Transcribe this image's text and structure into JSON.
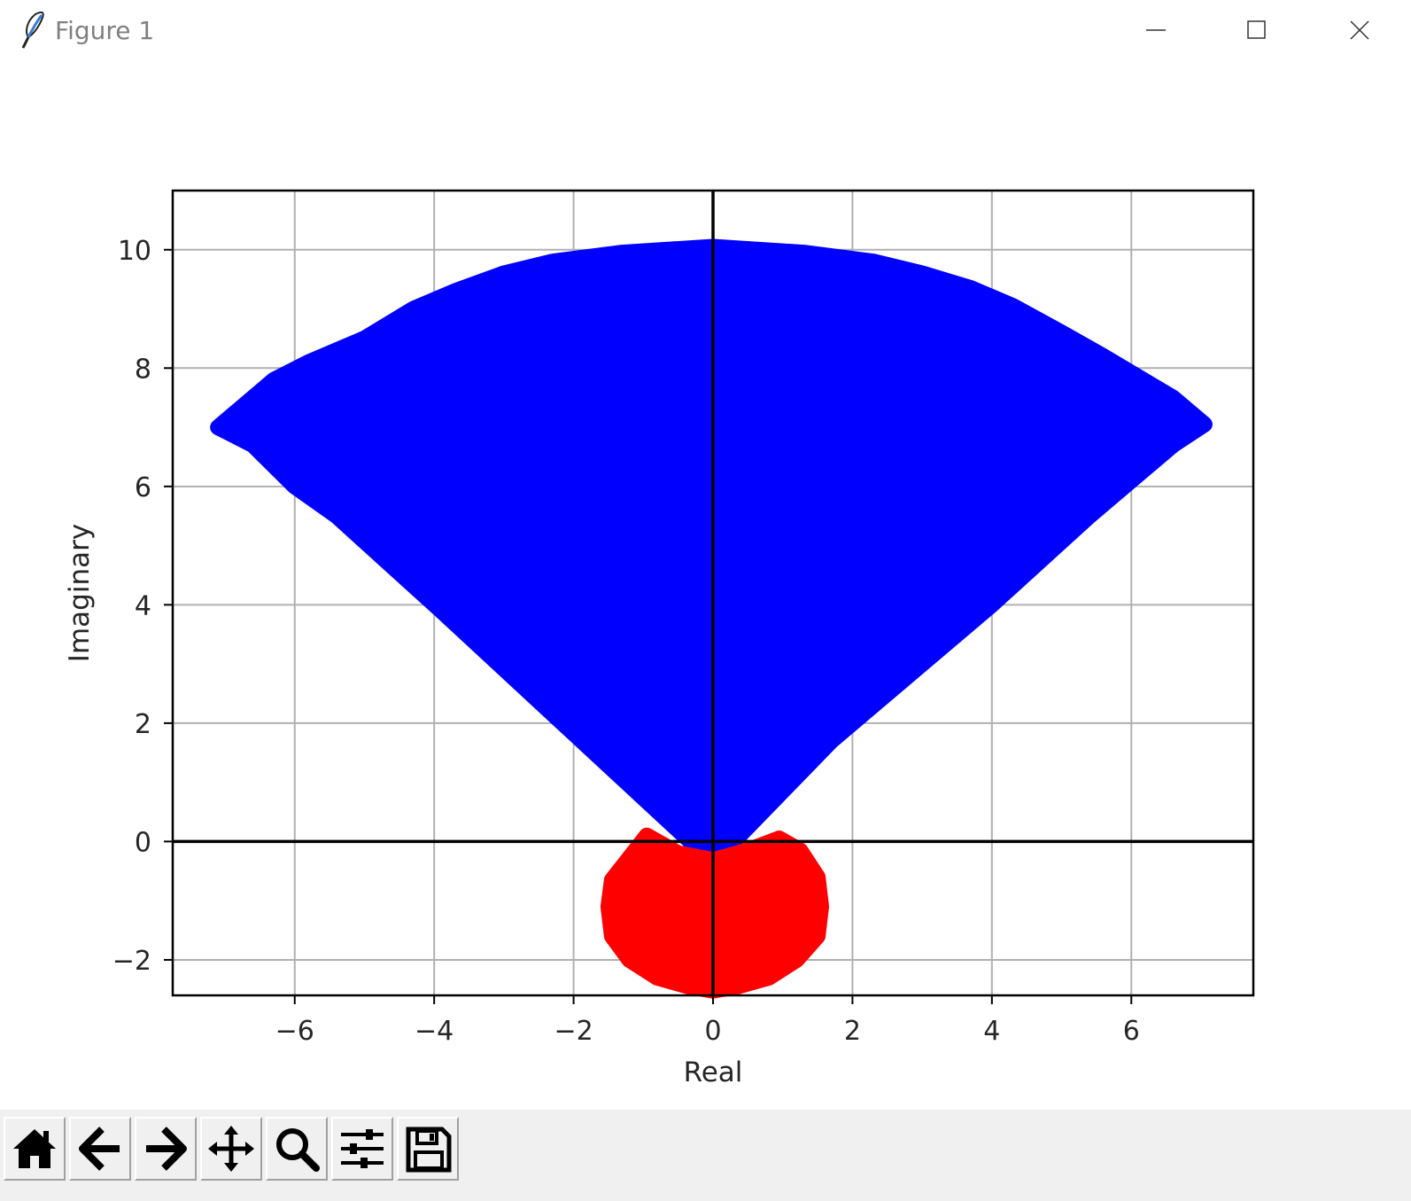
{
  "window": {
    "title": "Figure 1",
    "app_icon": "feather-icon",
    "controls": {
      "minimize": "minimize-icon",
      "maximize": "maximize-icon",
      "close": "close-icon"
    }
  },
  "toolbar": {
    "buttons": [
      {
        "icon": "home-icon"
      },
      {
        "icon": "back-arrow-icon"
      },
      {
        "icon": "forward-arrow-icon"
      },
      {
        "icon": "pan-move-icon"
      },
      {
        "icon": "zoom-magnifier-icon"
      },
      {
        "icon": "configure-subplots-icon"
      },
      {
        "icon": "save-floppy-icon"
      }
    ]
  },
  "chart_data": {
    "type": "scatter",
    "title": "",
    "xlabel": "Real",
    "ylabel": "Imaginary",
    "xlim": [
      -7.75,
      7.75
    ],
    "ylim": [
      -2.6,
      11.0
    ],
    "xticks": [
      -6,
      -4,
      -2,
      0,
      2,
      4,
      6
    ],
    "xtick_labels": [
      "−6",
      "−4",
      "−2",
      "0",
      "2",
      "4",
      "6"
    ],
    "yticks": [
      -2,
      0,
      2,
      4,
      6,
      8,
      10
    ],
    "ytick_labels": [
      "−2",
      "0",
      "2",
      "4",
      "6",
      "8",
      "10"
    ],
    "grid": true,
    "reference_lines": {
      "x": 0,
      "y": 0,
      "color": "#000000"
    },
    "series": [
      {
        "color": "#0000ff",
        "marker": "circle",
        "outline": [
          [
            -0.05,
            -0.3
          ],
          [
            -1.7,
            1.5
          ],
          [
            -3.9,
            3.9
          ],
          [
            -5.4,
            5.5
          ],
          [
            -6.0,
            6.0
          ],
          [
            -6.6,
            6.7
          ],
          [
            -7.1,
            7.0
          ],
          [
            -6.6,
            7.5
          ],
          [
            -6.3,
            7.8
          ],
          [
            -5.8,
            8.1
          ],
          [
            -5.0,
            8.5
          ],
          [
            -4.3,
            9.0
          ],
          [
            -3.7,
            9.3
          ],
          [
            -3.0,
            9.6
          ],
          [
            -2.3,
            9.8
          ],
          [
            -1.3,
            9.95
          ],
          [
            0.0,
            10.05
          ],
          [
            1.3,
            9.95
          ],
          [
            2.3,
            9.8
          ],
          [
            3.0,
            9.6
          ],
          [
            3.7,
            9.35
          ],
          [
            4.3,
            9.05
          ],
          [
            5.0,
            8.6
          ],
          [
            5.6,
            8.2
          ],
          [
            6.1,
            7.85
          ],
          [
            6.6,
            7.5
          ],
          [
            7.05,
            7.05
          ],
          [
            6.6,
            6.7
          ],
          [
            6.0,
            6.1
          ],
          [
            5.4,
            5.5
          ],
          [
            4.0,
            4.0
          ],
          [
            1.7,
            1.7
          ],
          [
            0.05,
            -0.3
          ]
        ]
      },
      {
        "color": "#ff0000",
        "marker": "circle",
        "outline": [
          [
            -0.05,
            -0.3
          ],
          [
            -0.5,
            -0.2
          ],
          [
            -0.95,
            0.1
          ],
          [
            -1.15,
            -0.2
          ],
          [
            -1.45,
            -0.65
          ],
          [
            -1.5,
            -1.1
          ],
          [
            -1.45,
            -1.6
          ],
          [
            -1.2,
            -2.0
          ],
          [
            -0.8,
            -2.3
          ],
          [
            -0.35,
            -2.45
          ],
          [
            0.0,
            -2.52
          ],
          [
            0.35,
            -2.45
          ],
          [
            0.8,
            -2.3
          ],
          [
            1.2,
            -2.0
          ],
          [
            1.5,
            -1.6
          ],
          [
            1.55,
            -1.1
          ],
          [
            1.5,
            -0.6
          ],
          [
            1.25,
            -0.15
          ],
          [
            0.95,
            0.05
          ],
          [
            0.5,
            -0.15
          ],
          [
            0.05,
            -0.3
          ]
        ]
      }
    ]
  }
}
